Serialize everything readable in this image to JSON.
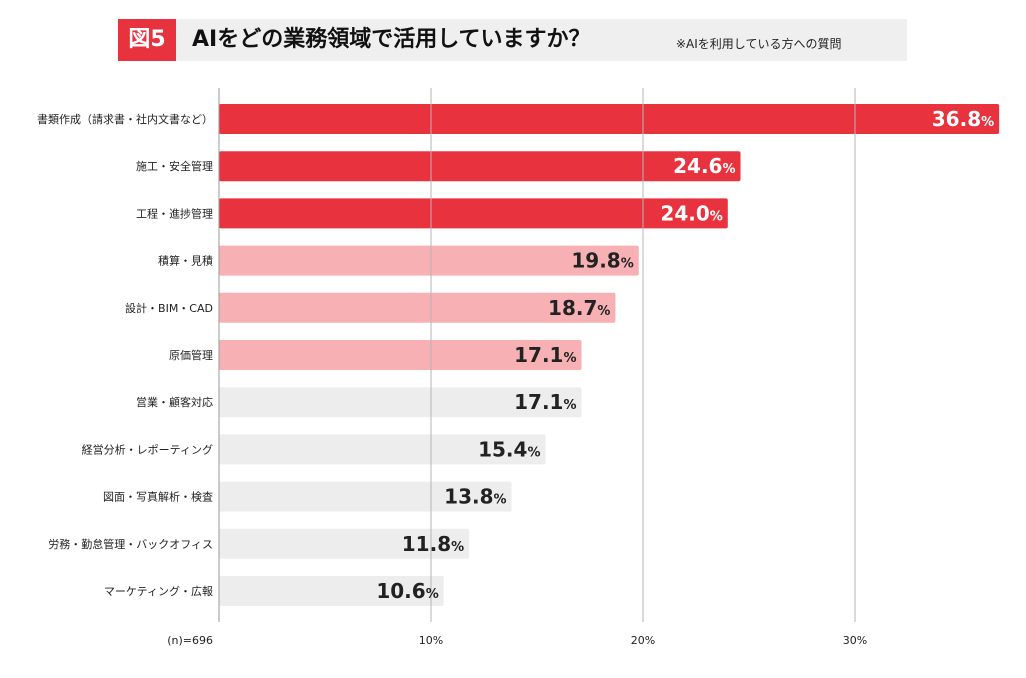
{
  "header": {
    "figure_label": "図5",
    "title": "AIをどの業務領域で活用していますか？",
    "note": "※AIを利用している方への質問"
  },
  "chart_data": {
    "type": "bar",
    "orientation": "horizontal",
    "categories": [
      "書類作成（請求書・社内文書など）",
      "施工・安全管理",
      "工程・進捗管理",
      "積算・見積",
      "設計・BIM・CAD",
      "原価管理",
      "営業・顧客対応",
      "経営分析・レポーティング",
      "図面・写真解析・検査",
      "労務・勤怠管理・バックオフィス",
      "マーケティング・広報"
    ],
    "values": [
      36.8,
      24.6,
      24.0,
      19.8,
      18.7,
      17.1,
      17.1,
      15.4,
      13.8,
      11.8,
      10.6
    ],
    "value_labels": [
      "36.8",
      "24.6",
      "24.0",
      "19.8",
      "18.7",
      "17.1",
      "17.1",
      "15.4",
      "13.8",
      "11.8",
      "10.6"
    ],
    "value_suffix": "%",
    "tier": [
      "top",
      "top",
      "top",
      "mid",
      "mid",
      "mid",
      "low",
      "low",
      "low",
      "low",
      "low"
    ],
    "xlim": [
      0,
      37
    ],
    "xticks": [
      10,
      20,
      30
    ],
    "xtick_labels": [
      "10%",
      "20%",
      "30%"
    ],
    "n_label": "(n)=696",
    "grid": true,
    "colors": {
      "top": "#e8333f",
      "mid": "#f7b0b4",
      "low": "#ededed",
      "grid": "#b5b5b5",
      "label_on_top": "#ffffff",
      "label_default": "#222222"
    }
  }
}
